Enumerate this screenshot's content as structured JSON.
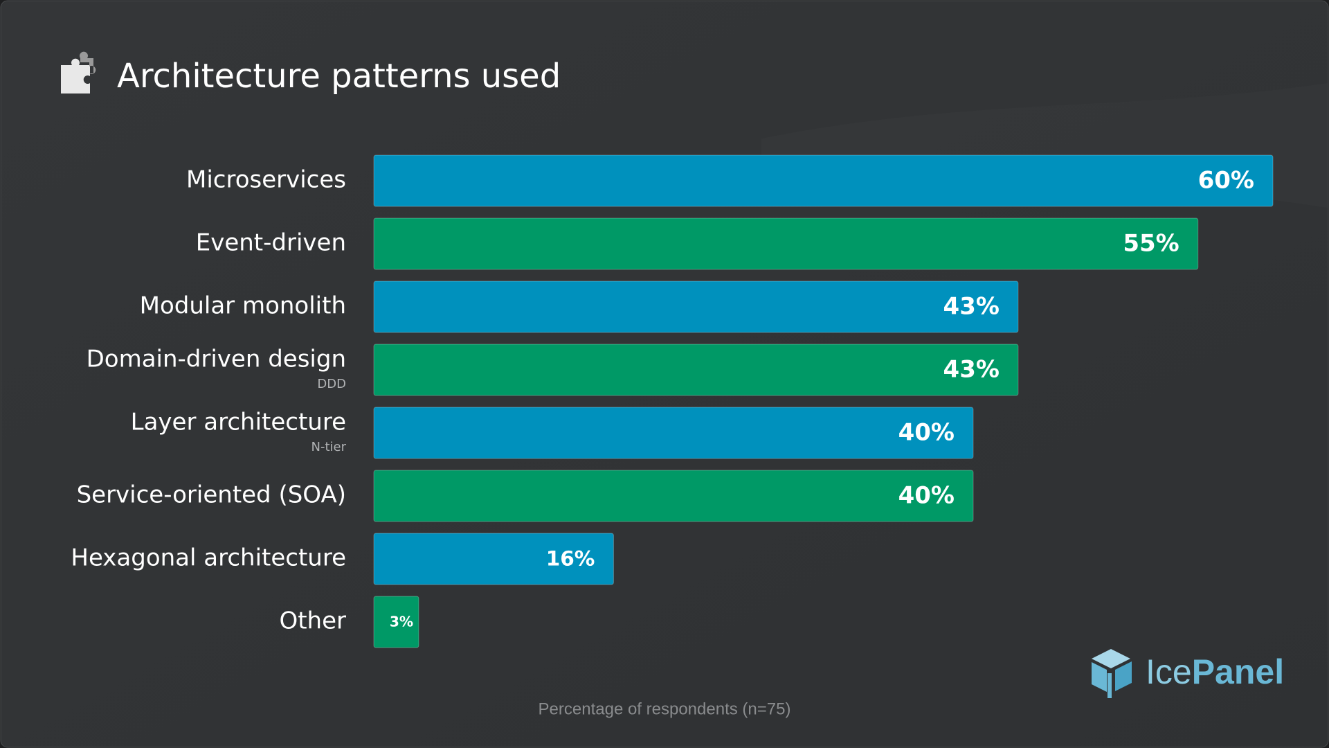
{
  "chart_data": {
    "type": "bar",
    "orientation": "horizontal",
    "title": "Architecture patterns used",
    "categories": [
      "Microservices",
      "Event-driven",
      "Modular monolith",
      "Domain-driven design",
      "Layer architecture",
      "Service-oriented (SOA)",
      "Hexagonal architecture",
      "Other"
    ],
    "sublabels": [
      null,
      null,
      null,
      "DDD",
      "N-tier",
      null,
      null,
      null
    ],
    "values": [
      60,
      55,
      43,
      43,
      40,
      40,
      16,
      3
    ],
    "value_labels": [
      "60%",
      "55%",
      "43%",
      "43%",
      "40%",
      "40%",
      "16%",
      "3%"
    ],
    "colors": [
      "#0091bd",
      "#009966",
      "#0091bd",
      "#009966",
      "#0091bd",
      "#009966",
      "#0091bd",
      "#009966"
    ],
    "footnote": "Percentage of respondents (n=75)",
    "brand": [
      "Ice",
      "Panel"
    ]
  }
}
